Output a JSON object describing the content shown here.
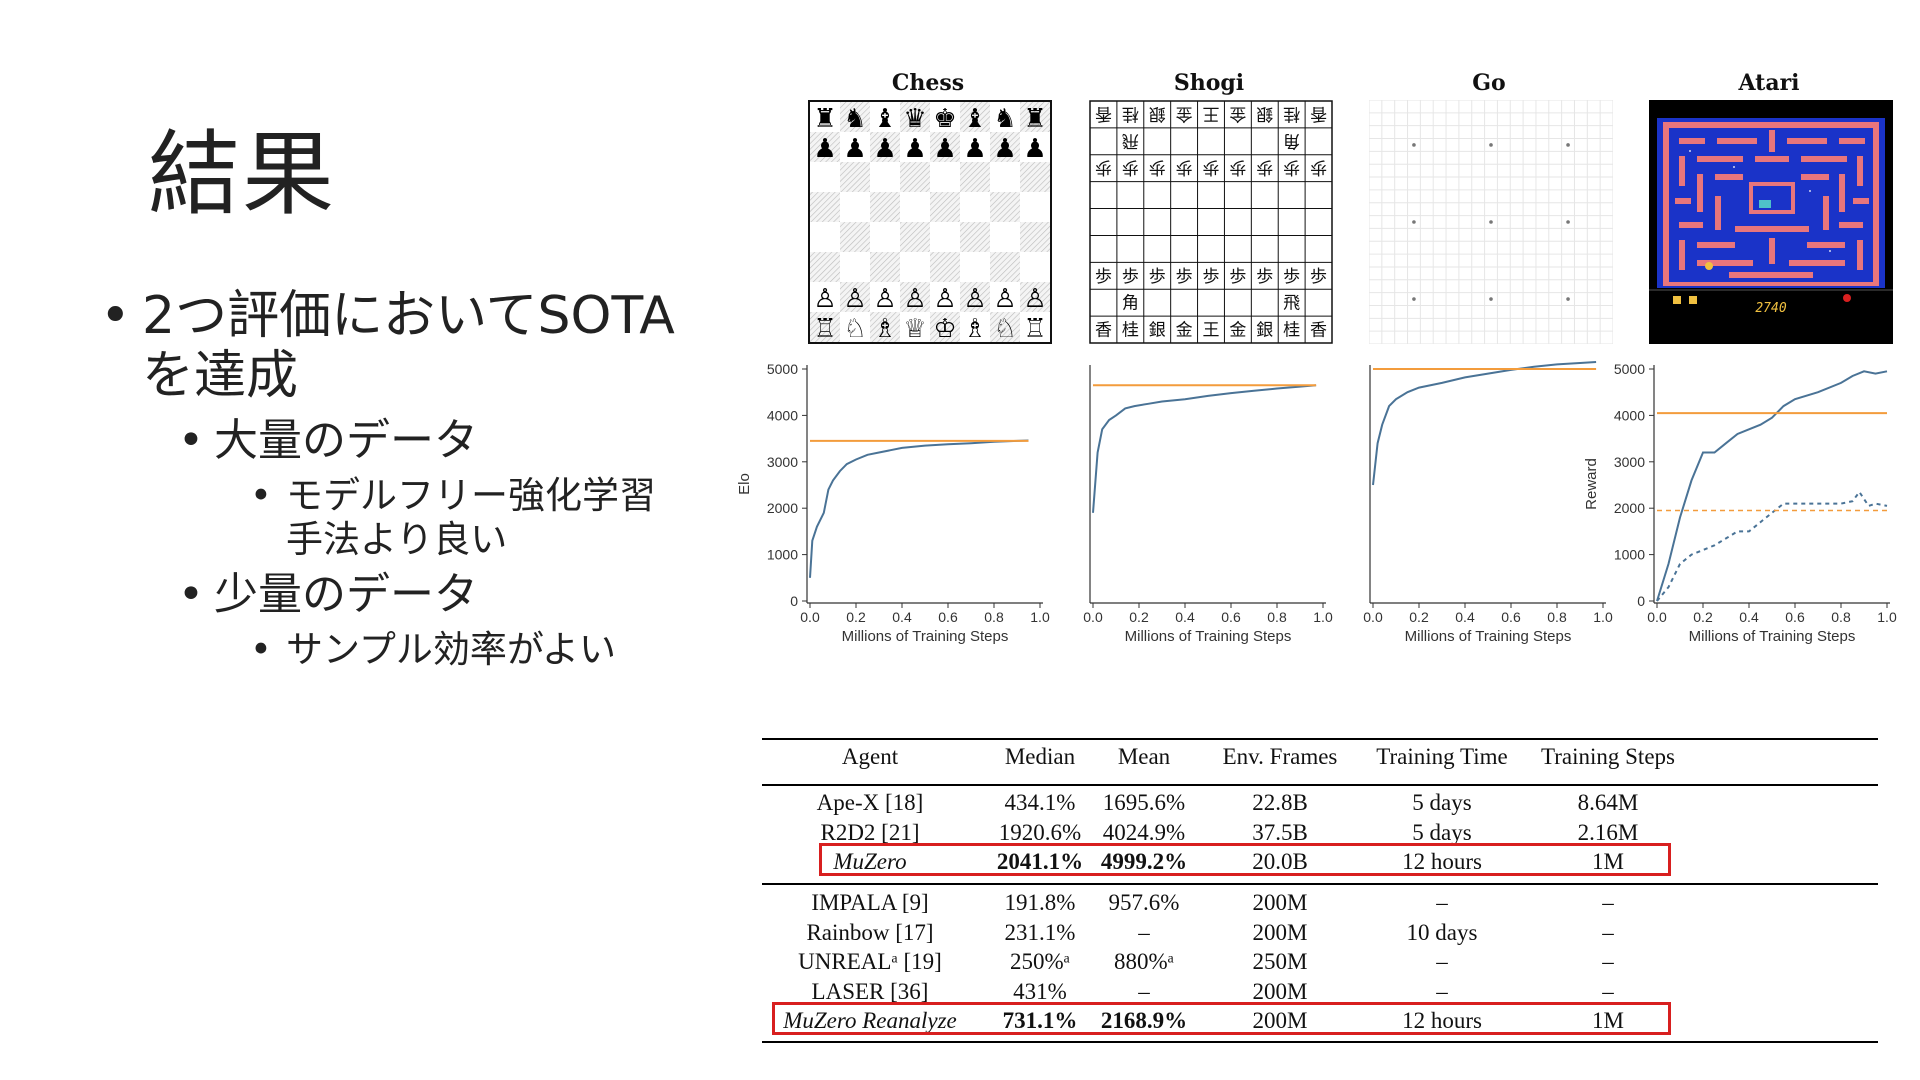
{
  "slide": {
    "title": "結果",
    "bullets": [
      {
        "level": 1,
        "text": "2つ評価においてSOTA\nを達成"
      },
      {
        "level": 2,
        "text": "大量のデータ"
      },
      {
        "level": 3,
        "text": "モデルフリー強化学習\n手法より良い"
      },
      {
        "level": 2,
        "text": "少量のデータ"
      },
      {
        "level": 3,
        "text": "サンプル効率がよい"
      }
    ],
    "bullet_char": "•"
  },
  "figure": {
    "panels": [
      "Chess",
      "Shogi",
      "Go",
      "Atari"
    ],
    "atari_score": "2740",
    "shogi_rows": {
      "top": [
        "香",
        "桂",
        "銀",
        "金",
        "王",
        "金",
        "銀",
        "桂",
        "香"
      ],
      "rank2": [
        "",
        "飛",
        "",
        "",
        "",
        "",
        "",
        "角",
        ""
      ],
      "pawns": [
        "歩",
        "歩",
        "歩",
        "歩",
        "歩",
        "歩",
        "歩",
        "歩",
        "歩"
      ],
      "rank8": [
        "",
        "角",
        "",
        "",
        "",
        "",
        "",
        "飛",
        ""
      ]
    },
    "chess_back": [
      "♜",
      "♞",
      "♝",
      "♛",
      "♚",
      "♝",
      "♞",
      "♜"
    ],
    "chess_pawn_black": "♟",
    "chess_back_white": [
      "♖",
      "♘",
      "♗",
      "♕",
      "♔",
      "♗",
      "♘",
      "♖"
    ],
    "chess_pawn_white": "♙",
    "colors": {
      "line": "#4a7396",
      "baseline": "#f39c3c",
      "highlight": "#d81f1f",
      "atari_bg": "#1a33c8",
      "atari_wall": "#e8767c"
    }
  },
  "chart_data": [
    {
      "type": "line",
      "panel": "Chess",
      "xlabel": "Millions of Training Steps",
      "ylabel": "Elo",
      "xlim": [
        0,
        1.0
      ],
      "ylim": [
        0,
        5000
      ],
      "xticks": [
        "0.0",
        "0.2",
        "0.4",
        "0.6",
        "0.8",
        "1.0"
      ],
      "yticks": [
        "0",
        "1000",
        "2000",
        "3000",
        "4000",
        "5000"
      ],
      "series": [
        {
          "x": [
            0,
            0.01,
            0.03,
            0.06,
            0.08,
            0.1,
            0.13,
            0.16,
            0.2,
            0.25,
            0.3,
            0.35,
            0.4,
            0.5,
            0.6,
            0.7,
            0.8,
            0.9,
            0.95
          ],
          "y": [
            500,
            1300,
            1600,
            1900,
            2400,
            2600,
            2800,
            2950,
            3050,
            3150,
            3200,
            3250,
            3300,
            3350,
            3380,
            3400,
            3430,
            3450,
            3460
          ]
        },
        {
          "x": [
            0,
            0.95
          ],
          "y": [
            3450,
            3450
          ]
        }
      ]
    },
    {
      "type": "line",
      "panel": "Shogi",
      "xlabel": "Millions of Training Steps",
      "ylabel": "",
      "xlim": [
        0,
        1.0
      ],
      "ylim": [
        0,
        5000
      ],
      "xticks": [
        "0.0",
        "0.2",
        "0.4",
        "0.6",
        "0.8",
        "1.0"
      ],
      "yticks": [],
      "series": [
        {
          "x": [
            0,
            0.02,
            0.04,
            0.07,
            0.1,
            0.14,
            0.18,
            0.24,
            0.3,
            0.4,
            0.5,
            0.6,
            0.7,
            0.8,
            0.9,
            0.97
          ],
          "y": [
            1900,
            3200,
            3700,
            3900,
            4000,
            4150,
            4200,
            4250,
            4300,
            4350,
            4420,
            4480,
            4530,
            4580,
            4620,
            4650
          ]
        },
        {
          "x": [
            0,
            0.97
          ],
          "y": [
            4650,
            4650
          ]
        }
      ]
    },
    {
      "type": "line",
      "panel": "Go",
      "xlabel": "Millions of Training Steps",
      "ylabel": "",
      "xlim": [
        0,
        1.0
      ],
      "ylim": [
        0,
        5000
      ],
      "xticks": [
        "0.0",
        "0.2",
        "0.4",
        "0.6",
        "0.8",
        "1.0"
      ],
      "yticks": [],
      "series": [
        {
          "x": [
            0,
            0.02,
            0.04,
            0.07,
            0.1,
            0.15,
            0.2,
            0.3,
            0.4,
            0.5,
            0.6,
            0.7,
            0.8,
            0.9,
            0.97
          ],
          "y": [
            2500,
            3400,
            3800,
            4200,
            4350,
            4500,
            4600,
            4700,
            4820,
            4900,
            4980,
            5050,
            5100,
            5130,
            5150
          ]
        },
        {
          "x": [
            0,
            0.97
          ],
          "y": [
            5000,
            5000
          ]
        }
      ]
    },
    {
      "type": "line",
      "panel": "Atari",
      "xlabel": "Millions of Training Steps",
      "ylabel": "Reward",
      "xlim": [
        0,
        1.0
      ],
      "ylim": [
        0,
        5000
      ],
      "xticks": [
        "0.0",
        "0.2",
        "0.4",
        "0.6",
        "0.8",
        "1.0"
      ],
      "yticks": [
        "0",
        "1000",
        "2000",
        "3000",
        "4000",
        "5000"
      ],
      "series": [
        {
          "x": [
            0,
            0.05,
            0.1,
            0.15,
            0.2,
            0.25,
            0.3,
            0.35,
            0.4,
            0.45,
            0.5,
            0.55,
            0.6,
            0.7,
            0.8,
            0.85,
            0.9,
            0.95,
            1.0
          ],
          "y": [
            0,
            800,
            1800,
            2600,
            3200,
            3200,
            3400,
            3600,
            3700,
            3800,
            3950,
            4200,
            4350,
            4500,
            4700,
            4850,
            4950,
            4900,
            4950
          ]
        },
        {
          "x": [
            0,
            0.05,
            0.1,
            0.15,
            0.2,
            0.25,
            0.3,
            0.35,
            0.4,
            0.45,
            0.5,
            0.55,
            0.6,
            0.7,
            0.8,
            0.85,
            0.88,
            0.92,
            0.95,
            1.0
          ],
          "y": [
            0,
            300,
            800,
            1000,
            1100,
            1200,
            1350,
            1500,
            1500,
            1700,
            1900,
            2100,
            2100,
            2100,
            2100,
            2150,
            2350,
            2050,
            2100,
            2050
          ]
        },
        {
          "x": [
            0,
            1.0
          ],
          "y": [
            4050,
            4050
          ]
        },
        {
          "x": [
            0,
            1.0
          ],
          "y": [
            1950,
            1950
          ]
        }
      ]
    }
  ],
  "table": {
    "headers": [
      "Agent",
      "Median",
      "Mean",
      "Env. Frames",
      "Training Time",
      "Training Steps"
    ],
    "group1": [
      [
        "Ape-X [18]",
        "434.1%",
        "1695.6%",
        "22.8B",
        "5 days",
        "8.64M"
      ],
      [
        "R2D2 [21]",
        "1920.6%",
        "4024.9%",
        "37.5B",
        "5 days",
        "2.16M"
      ],
      [
        "MuZero",
        "2041.1%",
        "4999.2%",
        "20.0B",
        "12 hours",
        "1M"
      ]
    ],
    "group2": [
      [
        "IMPALA [9]",
        "191.8%",
        "957.6%",
        "200M",
        "–",
        "–"
      ],
      [
        "Rainbow [17]",
        "231.1%",
        "–",
        "200M",
        "10 days",
        "–"
      ],
      [
        "UNREALᵃ [19]",
        "250%ᵃ",
        "880%ᵃ",
        "250M",
        "–",
        "–"
      ],
      [
        "LASER [36]",
        "431%",
        "–",
        "200M",
        "–",
        "–"
      ],
      [
        "MuZero Reanalyze",
        "731.1%",
        "2168.9%",
        "200M",
        "12 hours",
        "1M"
      ]
    ]
  }
}
